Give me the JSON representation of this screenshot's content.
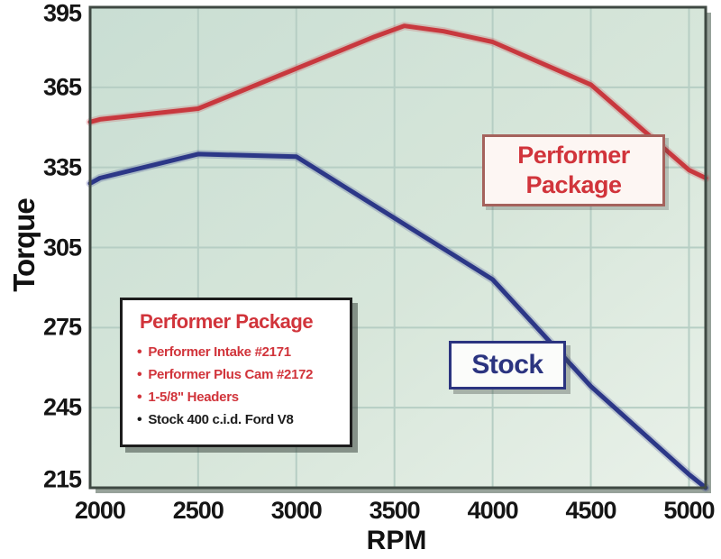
{
  "page": {
    "background": "#ffffff"
  },
  "chart_data": {
    "type": "line",
    "title": "",
    "xlabel": "RPM",
    "ylabel": "Torque",
    "x_ticks": [
      2000,
      2500,
      3000,
      3500,
      4000,
      4500,
      5000
    ],
    "y_ticks": [
      395,
      365,
      335,
      305,
      275,
      245,
      215
    ],
    "x_range": [
      1950,
      5085
    ],
    "y_range": [
      215,
      395
    ],
    "grid": true,
    "grid_color": "#b6cec4",
    "plot_border_color": "#3f4943",
    "legend_position": "inset-boxes",
    "series": [
      {
        "name": "Performer Package",
        "color": "#c8383e",
        "points": [
          [
            1950,
            352
          ],
          [
            2000,
            353
          ],
          [
            2500,
            357
          ],
          [
            3000,
            372
          ],
          [
            3400,
            384
          ],
          [
            3550,
            388
          ],
          [
            3750,
            386
          ],
          [
            4000,
            382
          ],
          [
            4500,
            366
          ],
          [
            5000,
            334
          ],
          [
            5085,
            331
          ]
        ]
      },
      {
        "name": "Stock",
        "color": "#2c3787",
        "points": [
          [
            1950,
            329
          ],
          [
            2000,
            331
          ],
          [
            2500,
            340
          ],
          [
            3000,
            339
          ],
          [
            3500,
            316
          ],
          [
            4000,
            293
          ],
          [
            4500,
            253
          ],
          [
            5000,
            220
          ],
          [
            5085,
            215
          ]
        ]
      }
    ]
  },
  "annotations": {
    "performer_label_line1": "Performer",
    "performer_label_line2": "Package",
    "stock_label": "Stock"
  },
  "legend": {
    "title": "Performer Package",
    "title_color": "#d1343b",
    "items": [
      {
        "text": "Performer Intake #2171",
        "color": "#d1343b"
      },
      {
        "text": "Performer Plus Cam #2172",
        "color": "#d1343b"
      },
      {
        "text": "1-5/8\" Headers",
        "color": "#d1343b"
      },
      {
        "text": "Stock 400 c.i.d. Ford V8",
        "color": "#1c1c1c"
      }
    ]
  },
  "colors": {
    "performer_red": "#c8383e",
    "stock_blue": "#2c3787",
    "plot_bg_top": "#c9ded3",
    "plot_bg_bottom": "#e9f1e9",
    "grid": "#b6cec4",
    "axis_border": "#3f4943",
    "axis_text": "#151515"
  }
}
